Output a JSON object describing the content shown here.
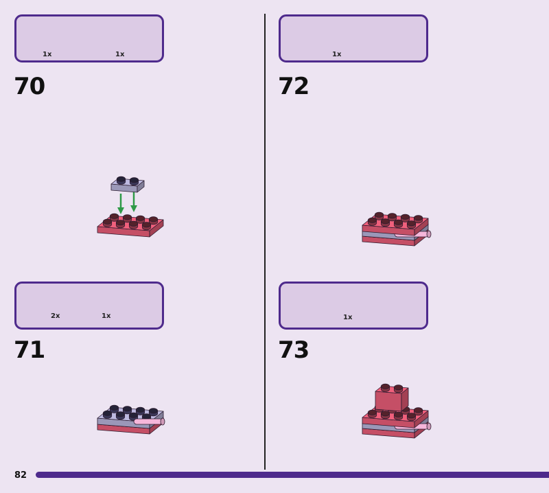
{
  "page_number": "82",
  "colors": {
    "accent": "#4e2a8c",
    "coral": "#f0607c",
    "lavender_trans": "#bdb9e0",
    "light_pink": "#f6b6da",
    "arrow": "#2f9a48"
  },
  "steps": [
    {
      "number": "70",
      "parts": [
        {
          "name": "coral-plate-2x4",
          "qty": "1x"
        },
        {
          "name": "trans-lavender-plate-1x2",
          "qty": "1x"
        }
      ]
    },
    {
      "number": "71",
      "parts": [
        {
          "name": "trans-lavender-plate-1x2",
          "qty": "2x"
        },
        {
          "name": "pink-plate-with-clip",
          "qty": "1x"
        }
      ]
    },
    {
      "number": "72",
      "parts": [
        {
          "name": "coral-plate-2x4",
          "qty": "1x"
        }
      ]
    },
    {
      "number": "73",
      "parts": [
        {
          "name": "coral-brick-1x2",
          "qty": "1x"
        }
      ]
    }
  ]
}
